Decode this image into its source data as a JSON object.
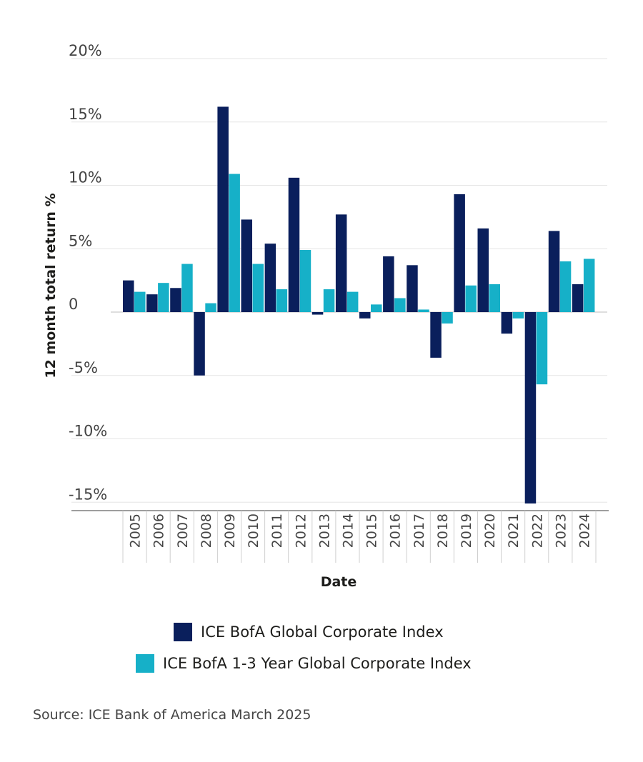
{
  "chart_data": {
    "type": "bar",
    "xlabel": "Date",
    "ylabel": "12 month total return %",
    "ylim": [
      -16,
      20
    ],
    "yticks": [
      20,
      15,
      10,
      5,
      0,
      -5,
      -10,
      -15
    ],
    "ytick_labels": [
      "20%",
      "15%",
      "10%",
      "5%",
      "0",
      "-5%",
      "-10%",
      "-15%"
    ],
    "grid": true,
    "legend_position": "bottom",
    "categories": [
      "2005",
      "2006",
      "2007",
      "2008",
      "2009",
      "2010",
      "2011",
      "2012",
      "2013",
      "2014",
      "2015",
      "2016",
      "2017",
      "2018",
      "2019",
      "2020",
      "2021",
      "2022",
      "2023",
      "2024"
    ],
    "series": [
      {
        "name": "ICE BofA Global Corporate Index",
        "color": "#0a1f5c",
        "values": [
          2.5,
          1.4,
          1.9,
          -5.0,
          16.2,
          7.3,
          5.4,
          10.6,
          -0.2,
          7.7,
          -0.5,
          4.4,
          3.7,
          -3.6,
          9.3,
          6.6,
          -1.7,
          -15.1,
          6.4,
          2.2
        ]
      },
      {
        "name": "ICE BofA 1-3 Year Global Corporate Index",
        "color": "#16b0c8",
        "values": [
          1.6,
          2.3,
          3.8,
          0.7,
          10.9,
          3.8,
          1.8,
          4.9,
          1.8,
          1.6,
          0.6,
          1.1,
          0.2,
          -0.9,
          2.1,
          2.2,
          -0.5,
          -5.7,
          4.0,
          4.2
        ]
      }
    ]
  },
  "source": "Source: ICE Bank of America March 2025"
}
